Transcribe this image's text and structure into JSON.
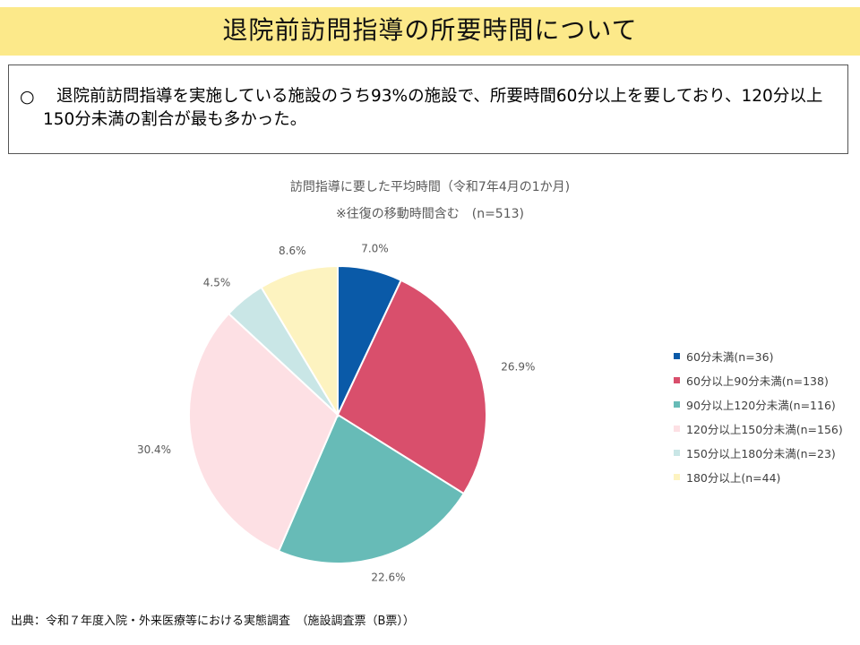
{
  "page": {
    "title": "退院前訪問指導の所要時間について",
    "summary_bullet": "○",
    "summary": "退院前訪問指導を実施している施設のうち93%の施設で、所要時間60分以上を要しており、120分以上150分未満の割合が最も多かった。",
    "source": "出典：令和７年度入院・外来医療等における実態調査　（施設調査票（B票））"
  },
  "chart_data": {
    "type": "pie",
    "title": "訪問指導に要した平均時間（令和7年4月の1か月)",
    "subtitle": "※往復の移動時間含む　(n=513)",
    "legend_position": "right",
    "start_angle_deg": 0,
    "direction": "clockwise",
    "slices": [
      {
        "label": "60分未満(n=36)",
        "value": 7.0,
        "display": "7.0%",
        "color": "#0a5aa8"
      },
      {
        "label": "60分以上90分未満(n=138)",
        "value": 26.9,
        "display": "26.9%",
        "color": "#d94f6c"
      },
      {
        "label": "90分以上120分未満(n=116)",
        "value": 22.6,
        "display": "22.6%",
        "color": "#67bbb7"
      },
      {
        "label": "120分以上150分未満(n=156)",
        "value": 30.4,
        "display": "30.4%",
        "color": "#fde0e4"
      },
      {
        "label": "150分以上180分未満(n=23)",
        "value": 4.5,
        "display": "4.5%",
        "color": "#c9e6e6"
      },
      {
        "label": "180分以上(n=44)",
        "value": 8.6,
        "display": "8.6%",
        "color": "#fdf3c0"
      }
    ]
  }
}
